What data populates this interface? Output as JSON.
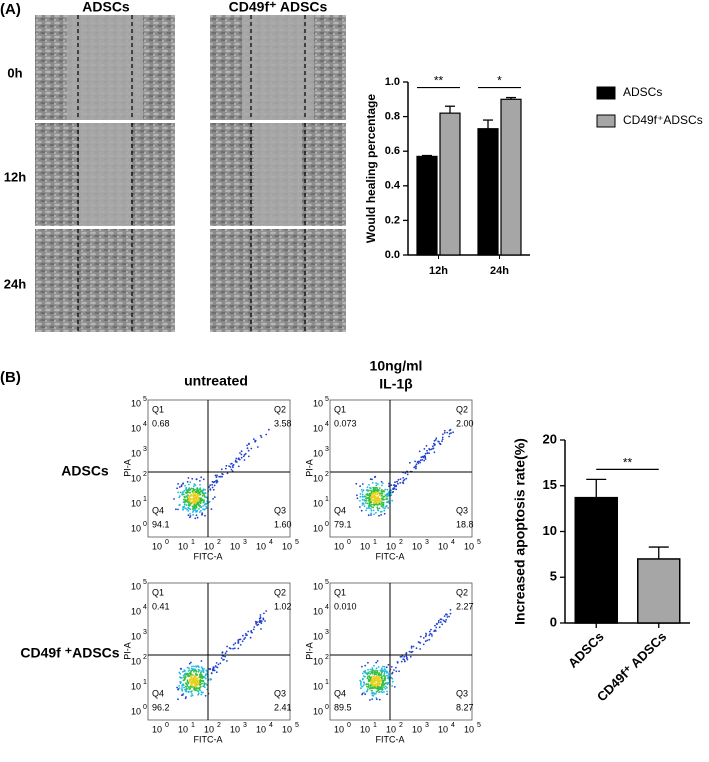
{
  "panel_a": {
    "label": "(A)",
    "columns": [
      "ADSCs",
      "CD49f⁺ ADSCs"
    ],
    "rows": [
      "0h",
      "12h",
      "24h"
    ]
  },
  "panel_b": {
    "label": "(B)",
    "columns": [
      "untreated",
      "10ng/ml",
      "IL-1β"
    ],
    "rows": [
      "ADSCs",
      "CD49f ⁺ADSCs"
    ],
    "flow_axis": {
      "x_label": "FITC-A",
      "y_label": "PI-A",
      "tick_base": "10",
      "tick_exponents": [
        "0",
        "1",
        "2",
        "3",
        "4",
        "5"
      ]
    },
    "plots": [
      {
        "quadrants": [
          {
            "name": "Q1",
            "value": "0.68"
          },
          {
            "name": "Q2",
            "value": "3.58"
          },
          {
            "name": "Q3",
            "value": "1.60"
          },
          {
            "name": "Q4",
            "value": "94.1"
          }
        ]
      },
      {
        "quadrants": [
          {
            "name": "Q1",
            "value": "0.073"
          },
          {
            "name": "Q2",
            "value": "2.00"
          },
          {
            "name": "Q3",
            "value": "18.8"
          },
          {
            "name": "Q4",
            "value": "79.1"
          }
        ]
      },
      {
        "quadrants": [
          {
            "name": "Q1",
            "value": "0.41"
          },
          {
            "name": "Q2",
            "value": "1.02"
          },
          {
            "name": "Q3",
            "value": "2.41"
          },
          {
            "name": "Q4",
            "value": "96.2"
          }
        ]
      },
      {
        "quadrants": [
          {
            "name": "Q1",
            "value": "0.010"
          },
          {
            "name": "Q2",
            "value": "2.27"
          },
          {
            "name": "Q3",
            "value": "8.27"
          },
          {
            "name": "Q4",
            "value": "89.5"
          }
        ]
      }
    ]
  },
  "chart_data": [
    {
      "type": "bar",
      "y_label": "Would healing percentage",
      "categories": [
        "12h",
        "24h"
      ],
      "series": [
        {
          "name": "ADSCs",
          "color": "#000000",
          "values": [
            0.57,
            0.73
          ],
          "errors": [
            0.005,
            0.05
          ]
        },
        {
          "name": "CD49f⁺ADSCs",
          "color": "#a6a6a6",
          "values": [
            0.82,
            0.9
          ],
          "errors": [
            0.04,
            0.01
          ]
        }
      ],
      "ylim": [
        0,
        1.0
      ],
      "yticks": [
        {
          "value": 0,
          "label": "0.0"
        },
        0.2,
        0.4,
        0.6,
        0.8,
        {
          "value": 1.0,
          "label": "1.0"
        }
      ],
      "annotations": [
        "**",
        "*"
      ],
      "legend": "right"
    },
    {
      "type": "bar",
      "y_label": "Increased apoptosis rate(%)",
      "categories": [
        "ADSCs",
        "CD49f⁺ ADSCs"
      ],
      "values": [
        13.7,
        7.0
      ],
      "errors": [
        2.0,
        1.3
      ],
      "colors": [
        "#000000",
        "#a6a6a6"
      ],
      "ylim": [
        0,
        20
      ],
      "yticks": [
        0,
        5,
        10,
        15,
        20
      ],
      "annotations": [
        "**"
      ]
    }
  ]
}
